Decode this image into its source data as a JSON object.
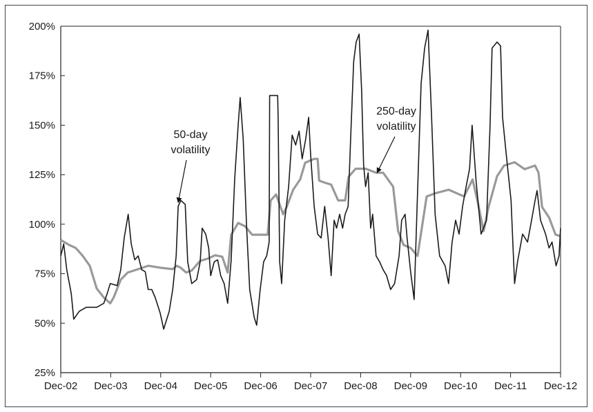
{
  "chart_data": {
    "type": "line",
    "title": "",
    "xlabel": "",
    "ylabel": "",
    "xlim": [
      2002.92,
      2012.92
    ],
    "ylim": [
      25,
      200
    ],
    "grid": false,
    "yticks": [
      25,
      50,
      75,
      100,
      125,
      150,
      175,
      200
    ],
    "ytick_labels": [
      "25%",
      "50%",
      "75%",
      "100%",
      "125%",
      "150%",
      "175%",
      "200%"
    ],
    "xticks": [
      2002.92,
      2003.92,
      2004.92,
      2005.92,
      2006.92,
      2007.92,
      2008.92,
      2009.92,
      2010.92,
      2011.92,
      2012.92
    ],
    "xtick_labels": [
      "Dec-02",
      "Dec-03",
      "Dec-04",
      "Dec-05",
      "Dec-06",
      "Dec-07",
      "Dec-08",
      "Dec-09",
      "Dec-10",
      "Dec-11",
      "Dec-12"
    ],
    "series": [
      {
        "color": "#1a1a1a",
        "points": [
          [
            2002.92,
            84
          ],
          [
            2002.98,
            90
          ],
          [
            2003.04,
            77
          ],
          [
            2003.13,
            65
          ],
          [
            2003.18,
            52
          ],
          [
            2003.29,
            56
          ],
          [
            2003.43,
            58
          ],
          [
            2003.64,
            58
          ],
          [
            2003.78,
            60
          ],
          [
            2003.85,
            65
          ],
          [
            2003.91,
            70
          ],
          [
            2004.05,
            69
          ],
          [
            2004.12,
            77
          ],
          [
            2004.19,
            93
          ],
          [
            2004.27,
            105
          ],
          [
            2004.33,
            90
          ],
          [
            2004.4,
            82
          ],
          [
            2004.47,
            84
          ],
          [
            2004.54,
            77
          ],
          [
            2004.61,
            76
          ],
          [
            2004.67,
            67
          ],
          [
            2004.74,
            67
          ],
          [
            2004.81,
            63
          ],
          [
            2004.91,
            55
          ],
          [
            2004.98,
            47
          ],
          [
            2005.09,
            56
          ],
          [
            2005.16,
            67
          ],
          [
            2005.23,
            84
          ],
          [
            2005.27,
            109
          ],
          [
            2005.32,
            112
          ],
          [
            2005.41,
            110
          ],
          [
            2005.46,
            81
          ],
          [
            2005.54,
            70
          ],
          [
            2005.64,
            72
          ],
          [
            2005.71,
            81
          ],
          [
            2005.75,
            98
          ],
          [
            2005.82,
            95
          ],
          [
            2005.88,
            88
          ],
          [
            2005.92,
            74
          ],
          [
            2005.99,
            81
          ],
          [
            2006.06,
            82
          ],
          [
            2006.12,
            74
          ],
          [
            2006.19,
            70
          ],
          [
            2006.26,
            60
          ],
          [
            2006.33,
            82
          ],
          [
            2006.4,
            123
          ],
          [
            2006.47,
            150
          ],
          [
            2006.51,
            164
          ],
          [
            2006.57,
            143
          ],
          [
            2006.64,
            98
          ],
          [
            2006.7,
            67
          ],
          [
            2006.79,
            53
          ],
          [
            2006.84,
            49
          ],
          [
            2006.91,
            67
          ],
          [
            2006.98,
            81
          ],
          [
            2007.04,
            84
          ],
          [
            2007.09,
            91
          ],
          [
            2007.1,
            165
          ],
          [
            2007.26,
            165
          ],
          [
            2007.27,
            154
          ],
          [
            2007.3,
            81
          ],
          [
            2007.34,
            70
          ],
          [
            2007.4,
            102
          ],
          [
            2007.48,
            119
          ],
          [
            2007.55,
            145
          ],
          [
            2007.62,
            140
          ],
          [
            2007.69,
            147
          ],
          [
            2007.75,
            133
          ],
          [
            2007.82,
            143
          ],
          [
            2007.88,
            154
          ],
          [
            2007.92,
            135
          ],
          [
            2007.99,
            109
          ],
          [
            2008.06,
            95
          ],
          [
            2008.13,
            93
          ],
          [
            2008.2,
            109
          ],
          [
            2008.27,
            93
          ],
          [
            2008.33,
            74
          ],
          [
            2008.39,
            102
          ],
          [
            2008.44,
            98
          ],
          [
            2008.5,
            105
          ],
          [
            2008.56,
            98
          ],
          [
            2008.61,
            105
          ],
          [
            2008.67,
            109
          ],
          [
            2008.72,
            143
          ],
          [
            2008.78,
            182
          ],
          [
            2008.83,
            192
          ],
          [
            2008.89,
            196
          ],
          [
            2008.94,
            168
          ],
          [
            2008.98,
            130
          ],
          [
            2009.02,
            119
          ],
          [
            2009.07,
            126
          ],
          [
            2009.12,
            98
          ],
          [
            2009.16,
            105
          ],
          [
            2009.23,
            84
          ],
          [
            2009.3,
            81
          ],
          [
            2009.37,
            77
          ],
          [
            2009.44,
            74
          ],
          [
            2009.52,
            67
          ],
          [
            2009.6,
            70
          ],
          [
            2009.69,
            84
          ],
          [
            2009.74,
            102
          ],
          [
            2009.81,
            105
          ],
          [
            2009.85,
            93
          ],
          [
            2009.92,
            76
          ],
          [
            2009.99,
            62
          ],
          [
            2010.05,
            109
          ],
          [
            2010.13,
            171
          ],
          [
            2010.2,
            189
          ],
          [
            2010.27,
            198
          ],
          [
            2010.34,
            154
          ],
          [
            2010.41,
            105
          ],
          [
            2010.5,
            84
          ],
          [
            2010.61,
            79
          ],
          [
            2010.68,
            70
          ],
          [
            2010.75,
            91
          ],
          [
            2010.82,
            102
          ],
          [
            2010.89,
            95
          ],
          [
            2010.96,
            109
          ],
          [
            2011.03,
            119
          ],
          [
            2011.1,
            128
          ],
          [
            2011.15,
            150
          ],
          [
            2011.23,
            122
          ],
          [
            2011.33,
            95
          ],
          [
            2011.44,
            102
          ],
          [
            2011.51,
            150
          ],
          [
            2011.55,
            189
          ],
          [
            2011.65,
            192
          ],
          [
            2011.72,
            190
          ],
          [
            2011.76,
            154
          ],
          [
            2011.83,
            136
          ],
          [
            2011.93,
            112
          ],
          [
            2012.0,
            70
          ],
          [
            2012.06,
            81
          ],
          [
            2012.16,
            95
          ],
          [
            2012.26,
            91
          ],
          [
            2012.34,
            102
          ],
          [
            2012.41,
            112
          ],
          [
            2012.45,
            117
          ],
          [
            2012.52,
            102
          ],
          [
            2012.62,
            95
          ],
          [
            2012.69,
            88
          ],
          [
            2012.75,
            91
          ],
          [
            2012.83,
            79
          ],
          [
            2012.89,
            84
          ],
          [
            2012.92,
            98
          ]
        ]
      },
      {
        "color": "#999999",
        "points": [
          [
            2002.92,
            92
          ],
          [
            2003.09,
            89.5
          ],
          [
            2003.22,
            88
          ],
          [
            2003.36,
            84
          ],
          [
            2003.5,
            79
          ],
          [
            2003.64,
            67.5
          ],
          [
            2003.78,
            63
          ],
          [
            2003.91,
            60
          ],
          [
            2003.98,
            63
          ],
          [
            2004.12,
            72
          ],
          [
            2004.26,
            75.6
          ],
          [
            2004.47,
            77.3
          ],
          [
            2004.67,
            79
          ],
          [
            2004.92,
            78
          ],
          [
            2005.16,
            77.3
          ],
          [
            2005.24,
            79
          ],
          [
            2005.32,
            78
          ],
          [
            2005.43,
            75.6
          ],
          [
            2005.54,
            76.6
          ],
          [
            2005.71,
            81.5
          ],
          [
            2005.85,
            82.5
          ],
          [
            2006.01,
            84.3
          ],
          [
            2006.15,
            83.6
          ],
          [
            2006.26,
            75.6
          ],
          [
            2006.33,
            94.7
          ],
          [
            2006.47,
            100.6
          ],
          [
            2006.61,
            98.9
          ],
          [
            2006.75,
            94.7
          ],
          [
            2006.88,
            94.7
          ],
          [
            2007.06,
            94.7
          ],
          [
            2007.12,
            112
          ],
          [
            2007.23,
            115
          ],
          [
            2007.37,
            105
          ],
          [
            2007.44,
            108.7
          ],
          [
            2007.57,
            117.4
          ],
          [
            2007.71,
            122.6
          ],
          [
            2007.81,
            131
          ],
          [
            2007.99,
            133
          ],
          [
            2008.06,
            133
          ],
          [
            2008.09,
            122
          ],
          [
            2008.2,
            121
          ],
          [
            2008.33,
            120
          ],
          [
            2008.47,
            112
          ],
          [
            2008.61,
            112
          ],
          [
            2008.68,
            124
          ],
          [
            2008.82,
            128
          ],
          [
            2009.02,
            128
          ],
          [
            2009.23,
            126
          ],
          [
            2009.37,
            126
          ],
          [
            2009.57,
            119
          ],
          [
            2009.67,
            96.5
          ],
          [
            2009.78,
            89.5
          ],
          [
            2009.92,
            88
          ],
          [
            2010.06,
            84
          ],
          [
            2010.24,
            114
          ],
          [
            2010.41,
            115.6
          ],
          [
            2010.68,
            117.4
          ],
          [
            2010.99,
            114
          ],
          [
            2011.16,
            122.6
          ],
          [
            2011.27,
            110.4
          ],
          [
            2011.38,
            96.5
          ],
          [
            2011.48,
            108.7
          ],
          [
            2011.65,
            124.3
          ],
          [
            2011.79,
            129.6
          ],
          [
            2012.0,
            131.3
          ],
          [
            2012.2,
            127.8
          ],
          [
            2012.41,
            129.6
          ],
          [
            2012.48,
            126
          ],
          [
            2012.55,
            108.7
          ],
          [
            2012.69,
            103.4
          ],
          [
            2012.82,
            94.7
          ],
          [
            2012.92,
            94
          ]
        ]
      }
    ],
    "annotations": [
      {
        "lines": [
          "50-day",
          "volatility"
        ],
        "points_to": [
          2005.27,
          111
        ]
      },
      {
        "lines": [
          "250-day",
          "volatility"
        ],
        "points_to": [
          2009.25,
          126
        ]
      }
    ]
  }
}
